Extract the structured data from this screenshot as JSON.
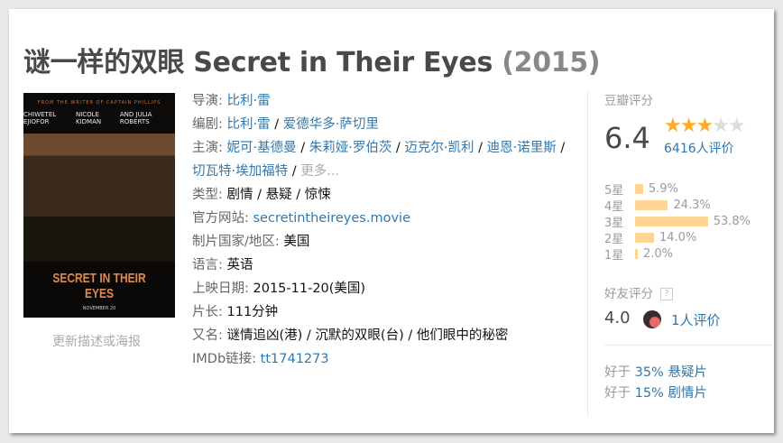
{
  "title": {
    "name": "谜一样的双眼 Secret in Their Eyes",
    "year": "(2015)"
  },
  "poster": {
    "tagline_top": "FROM THE WRITER OF CAPTAIN PHILLIPS",
    "actors": [
      "CHIWETEL EJIOFOR",
      "NICOLE KIDMAN",
      "AND JULIA ROBERTS"
    ],
    "poster_title": "SECRET IN THEIR EYES",
    "date": "NOVEMBER 20"
  },
  "update_link": "更新描述或海报",
  "info": {
    "director": {
      "label": "导演",
      "values": [
        "比利·雷"
      ]
    },
    "writer": {
      "label": "编剧",
      "values": [
        "比利·雷",
        "爱德华多·萨切里"
      ]
    },
    "cast": {
      "label": "主演",
      "values": [
        "妮可·基德曼",
        "朱莉娅·罗伯茨",
        "迈克尔·凯利",
        "迪恩·诺里斯",
        "切瓦特·埃加福特"
      ],
      "more": "更多..."
    },
    "genre": {
      "label": "类型",
      "values": [
        "剧情",
        "悬疑",
        "惊悚"
      ]
    },
    "website": {
      "label": "官方网站",
      "value": "secretintheireyes.movie"
    },
    "country": {
      "label": "制片国家/地区",
      "value": "美国"
    },
    "language": {
      "label": "语言",
      "value": "英语"
    },
    "release": {
      "label": "上映日期",
      "value": "2015-11-20(美国)"
    },
    "runtime": {
      "label": "片长",
      "value": "111分钟"
    },
    "aka": {
      "label": "又名",
      "value": "谜情追凶(港) / 沉默的双眼(台) / 他们眼中的秘密"
    },
    "imdb": {
      "label": "IMDb链接",
      "value": "tt1741273"
    }
  },
  "rating": {
    "heading": "豆瓣评分",
    "score": "6.4",
    "stars": 3,
    "max_stars": 5,
    "count": "6416人评价",
    "star_color": "#ffac2d",
    "bar_color": "#ffd596",
    "distribution": [
      {
        "label": "5星",
        "percent": 5.9,
        "text": "5.9%"
      },
      {
        "label": "4星",
        "percent": 24.3,
        "text": "24.3%"
      },
      {
        "label": "3星",
        "percent": 53.8,
        "text": "53.8%"
      },
      {
        "label": "2星",
        "percent": 14.0,
        "text": "14.0%"
      },
      {
        "label": "1星",
        "percent": 2.0,
        "text": "2.0%"
      }
    ]
  },
  "friends": {
    "heading": "好友评分",
    "help": "?",
    "score": "4.0",
    "count": "1人评价"
  },
  "better_than": [
    {
      "prefix": "好于",
      "value": "35% 悬疑片"
    },
    {
      "prefix": "好于",
      "value": "15% 剧情片"
    }
  ]
}
